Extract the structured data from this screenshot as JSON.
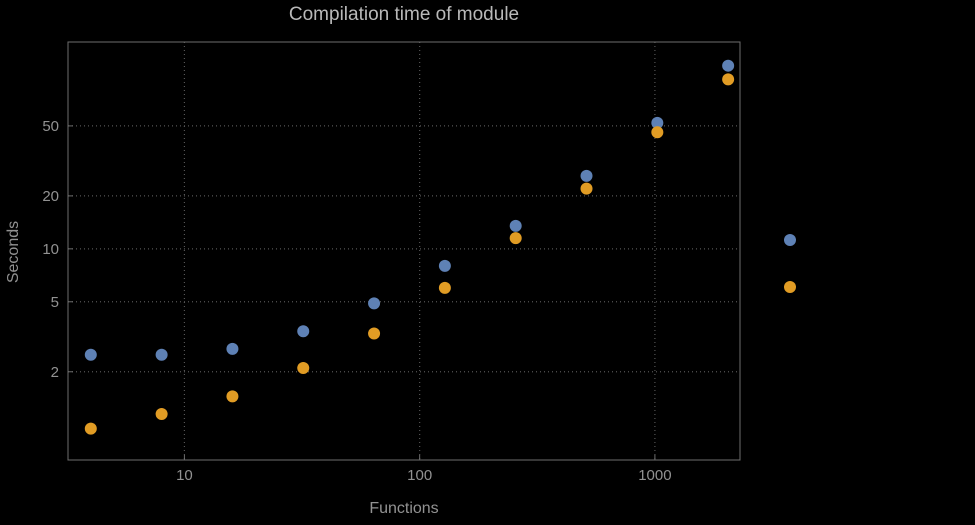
{
  "chart_data": {
    "type": "scatter",
    "title": "Compilation time of module",
    "xlabel": "Functions",
    "ylabel": "Seconds",
    "x_scale": "log",
    "y_scale": "log",
    "xlim": [
      3.2,
      2300
    ],
    "ylim": [
      0.63,
      150
    ],
    "x_ticks": [
      10,
      100,
      1000
    ],
    "y_ticks": [
      2,
      5,
      10,
      20,
      50
    ],
    "grid": "dotted",
    "grid_color": "#555555",
    "frame_color": "#6e6e6e",
    "tick_label_color": "#929292",
    "x": [
      4,
      8,
      16,
      32,
      64,
      128,
      256,
      512,
      1024,
      2048
    ],
    "series": [
      {
        "name": "series-1-blue",
        "color": "#5e81b5",
        "values": [
          2.5,
          2.5,
          2.7,
          3.4,
          4.9,
          8,
          13.5,
          26,
          52,
          110
        ]
      },
      {
        "name": "series-2-orange",
        "color": "#e19c24",
        "values": [
          0.95,
          1.15,
          1.45,
          2.1,
          3.3,
          6,
          11.5,
          22,
          46,
          92
        ]
      }
    ],
    "legend_markers": [
      {
        "series": "series-1-blue",
        "color": "#5e81b5"
      },
      {
        "series": "series-2-orange",
        "color": "#e19c24"
      }
    ],
    "legend_position": "right-outside"
  }
}
